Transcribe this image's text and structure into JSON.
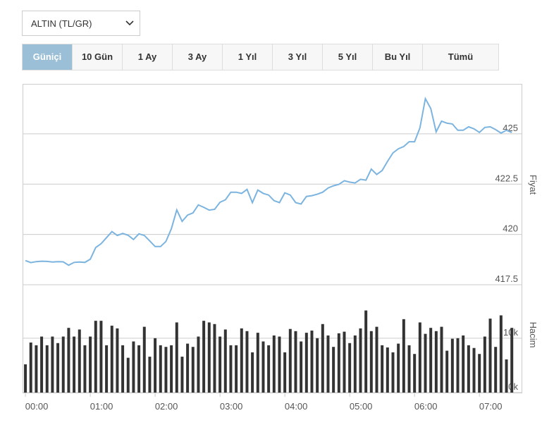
{
  "selector": {
    "label": "ALTIN (TL/GR)"
  },
  "tabs": [
    "Güniçi",
    "10 Gün",
    "1 Ay",
    "3 Ay",
    "1 Yıl",
    "3 Yıl",
    "5 Yıl",
    "Bu Yıl",
    "Tümü"
  ],
  "active_tab": 0,
  "chart_data": [
    {
      "type": "line",
      "y_label": "Fiyat",
      "color": "#7cb4e0",
      "grid": true,
      "x": [
        0,
        5,
        10,
        15,
        20,
        25,
        30,
        35,
        40,
        45,
        50,
        55,
        60,
        65,
        70,
        75,
        80,
        85,
        90,
        95,
        100,
        105,
        110,
        115,
        120,
        125,
        130,
        135,
        140,
        145,
        150,
        155,
        160,
        165,
        170,
        175,
        180,
        185,
        190,
        195,
        200,
        205,
        210,
        215,
        220,
        225,
        230,
        235,
        240,
        245,
        250,
        255,
        260,
        265,
        270,
        275,
        280,
        285,
        290,
        295,
        300,
        305,
        310,
        315,
        320,
        325,
        330,
        335,
        340,
        345,
        350,
        355,
        360,
        365,
        370,
        375,
        380,
        385,
        390,
        395,
        400,
        405,
        410,
        415,
        420,
        425,
        430,
        435,
        440,
        445,
        450
      ],
      "values": [
        418.7,
        418.6,
        418.65,
        418.67,
        418.66,
        418.63,
        418.65,
        418.64,
        418.47,
        418.61,
        418.63,
        418.61,
        418.77,
        419.35,
        419.54,
        419.84,
        420.14,
        419.95,
        420.05,
        419.96,
        419.75,
        420.03,
        419.95,
        419.68,
        419.4,
        419.4,
        419.65,
        420.28,
        421.22,
        420.65,
        420.96,
        421.07,
        421.47,
        421.35,
        421.21,
        421.25,
        421.6,
        421.72,
        422.1,
        422.1,
        422.04,
        422.24,
        421.58,
        422.21,
        422.04,
        421.96,
        421.68,
        421.58,
        422.07,
        421.96,
        421.58,
        421.51,
        421.89,
        421.93,
        422.0,
        422.1,
        422.31,
        422.42,
        422.49,
        422.67,
        422.6,
        422.56,
        422.74,
        422.7,
        423.25,
        422.98,
        423.18,
        423.63,
        424.05,
        424.26,
        424.37,
        424.61,
        424.61,
        425.3,
        426.75,
        426.26,
        425.1,
        425.63,
        425.53,
        425.49,
        425.18,
        425.18,
        425.35,
        425.25,
        425.07,
        425.32,
        425.35,
        425.21,
        425.04,
        425.18,
        425.07
      ],
      "xlim": [
        -2,
        459
      ],
      "ylim": [
        417.5,
        427.45
      ],
      "yticks": [
        {
          "value": 417.5,
          "label": "417.5"
        },
        420,
        {
          "value": 422.5,
          "label": "422.5"
        },
        425
      ]
    },
    {
      "type": "bar",
      "y_label": "Hacim",
      "color": "#333333",
      "grid": true,
      "x": [
        0,
        5,
        10,
        15,
        20,
        25,
        30,
        35,
        40,
        45,
        50,
        55,
        60,
        65,
        70,
        75,
        80,
        85,
        90,
        95,
        100,
        105,
        110,
        115,
        120,
        125,
        130,
        135,
        140,
        145,
        150,
        155,
        160,
        165,
        170,
        175,
        180,
        185,
        190,
        195,
        200,
        205,
        210,
        215,
        220,
        225,
        230,
        235,
        240,
        245,
        250,
        255,
        260,
        265,
        270,
        275,
        280,
        285,
        290,
        295,
        300,
        305,
        310,
        315,
        320,
        325,
        330,
        335,
        340,
        345,
        350,
        355,
        360,
        365,
        370,
        375,
        380,
        385,
        390,
        395,
        400,
        405,
        410,
        415,
        420,
        425,
        430,
        435,
        440,
        445,
        450
      ],
      "values": [
        5.2,
        9.2,
        8.7,
        10.3,
        8.7,
        10.3,
        9.1,
        10.3,
        11.9,
        10.3,
        11.6,
        8.7,
        10.3,
        13.2,
        13.2,
        8.7,
        12.3,
        11.8,
        8.7,
        6.4,
        9.4,
        8.7,
        12.1,
        6.6,
        10.0,
        8.7,
        8.4,
        8.7,
        12.9,
        6.6,
        9.0,
        8.4,
        10.3,
        13.2,
        12.9,
        12.6,
        10.3,
        11.6,
        8.7,
        8.7,
        11.8,
        11.3,
        7.4,
        11.0,
        9.4,
        8.7,
        10.5,
        10.3,
        7.4,
        11.7,
        11.3,
        9.4,
        11.0,
        11.4,
        10.0,
        12.6,
        10.5,
        8.4,
        10.9,
        11.2,
        9.1,
        10.5,
        11.8,
        15.1,
        11.3,
        12.1,
        8.7,
        8.3,
        7.4,
        9.0,
        13.5,
        8.7,
        7.1,
        12.9,
        10.8,
        11.9,
        11.3,
        12.1,
        7.7,
        9.9,
        10.0,
        10.5,
        8.7,
        8.2,
        7.1,
        10.3,
        13.6,
        8.4,
        14.2,
        6.1,
        11.9
      ],
      "xlim": [
        -2,
        459
      ],
      "ylim": [
        0,
        19.7
      ],
      "yticks": [
        {
          "value": 0,
          "label": "0k"
        },
        {
          "value": 10,
          "label": "10k"
        }
      ],
      "xticks": [
        {
          "value": 0,
          "label": "00:00"
        },
        {
          "value": 60,
          "label": "01:00"
        },
        {
          "value": 120,
          "label": "02:00"
        },
        {
          "value": 180,
          "label": "03:00"
        },
        {
          "value": 240,
          "label": "04:00"
        },
        {
          "value": 300,
          "label": "05:00"
        },
        {
          "value": 360,
          "label": "06:00"
        },
        {
          "value": 420,
          "label": "07:00"
        }
      ]
    }
  ]
}
